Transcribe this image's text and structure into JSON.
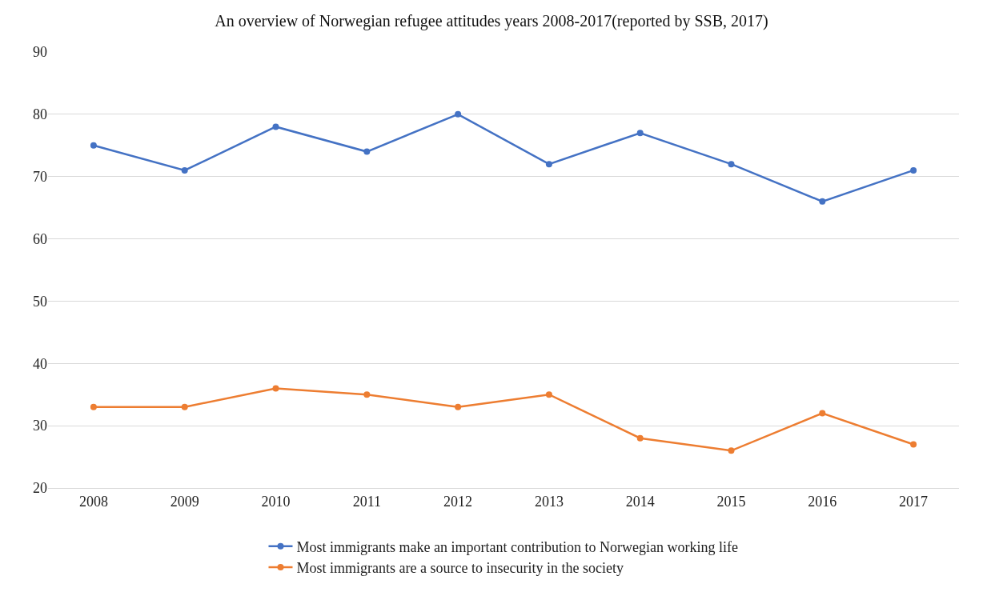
{
  "chart_data": {
    "type": "line",
    "title": "An overview of Norwegian refugee attitudes years 2008-2017(reported by SSB, 2017)",
    "categories": [
      "2008",
      "2009",
      "2010",
      "2011",
      "2012",
      "2013",
      "2014",
      "2015",
      "2016",
      "2017"
    ],
    "series": [
      {
        "name": "Most immigrants make an important contribution to Norwegian working life",
        "color": "#4472c4",
        "values": [
          75,
          71,
          78,
          74,
          80,
          72,
          77,
          72,
          66,
          71
        ]
      },
      {
        "name": "Most immigrants are a source to insecurity in the society",
        "color": "#ed7d31",
        "values": [
          33,
          33,
          36,
          35,
          33,
          35,
          28,
          26,
          32,
          27
        ]
      }
    ],
    "ylim": [
      20,
      90
    ],
    "yticks": [
      20,
      30,
      40,
      50,
      60,
      70,
      80,
      90
    ],
    "grid": "y",
    "legend": "bottom",
    "marker": "circle",
    "line_style": "solid"
  }
}
